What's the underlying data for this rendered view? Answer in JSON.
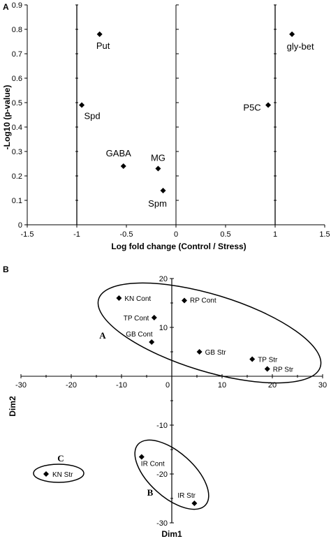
{
  "chart_data": [
    {
      "panel": "A",
      "type": "scatter",
      "xlabel": "Log fold change (Control / Stress)",
      "ylabel": "-Log10 (p-value)",
      "xlim": [
        -1.5,
        1.5
      ],
      "ylim": [
        0,
        0.9
      ],
      "x_ticks": [
        "-1.5",
        "-1",
        "-0.5",
        "0",
        "0.5",
        "1",
        "1.5"
      ],
      "y_ticks": [
        "0",
        "0.1",
        "0.2",
        "0.3",
        "0.4",
        "0.5",
        "0.6",
        "0.7",
        "0.8",
        "0.9"
      ],
      "threshold_lines_x": [
        -1,
        1
      ],
      "points": [
        {
          "label": "Put",
          "x": -0.77,
          "y": 0.78
        },
        {
          "label": "gly-bet",
          "x": 1.17,
          "y": 0.78
        },
        {
          "label": "Spd",
          "x": -0.95,
          "y": 0.49
        },
        {
          "label": "P5C",
          "x": 0.93,
          "y": 0.49
        },
        {
          "label": "GABA",
          "x": -0.53,
          "y": 0.24
        },
        {
          "label": "MG",
          "x": -0.18,
          "y": 0.23
        },
        {
          "label": "Spm",
          "x": -0.13,
          "y": 0.14
        }
      ]
    },
    {
      "panel": "B",
      "type": "scatter",
      "xlabel": "Dim1",
      "ylabel": "Dim2",
      "xlim": [
        -30,
        30
      ],
      "ylim": [
        -30,
        20
      ],
      "x_ticks": [
        "-30",
        "-20",
        "-10",
        "0",
        "10",
        "20",
        "30"
      ],
      "y_ticks": [
        "20",
        "10",
        "0",
        "-10",
        "-20",
        "-30"
      ],
      "points": [
        {
          "label": "KN Cont",
          "x": -10.5,
          "y": 16
        },
        {
          "label": "RP Cont",
          "x": 2.5,
          "y": 15.5
        },
        {
          "label": "TP Cont",
          "x": -3.5,
          "y": 12
        },
        {
          "label": "GB Cont",
          "x": -4,
          "y": 7
        },
        {
          "label": "GB Str",
          "x": 5.5,
          "y": 5
        },
        {
          "label": "TP Str",
          "x": 16,
          "y": 3.5
        },
        {
          "label": "RP Str",
          "x": 19,
          "y": 1.5
        },
        {
          "label": "IR Cont",
          "x": -6,
          "y": -16.5
        },
        {
          "label": "IR Str",
          "x": 4.5,
          "y": -26
        },
        {
          "label": "KN Str",
          "x": -25,
          "y": -20
        }
      ],
      "groups": [
        {
          "label": "A"
        },
        {
          "label": "B"
        },
        {
          "label": "C"
        }
      ]
    }
  ]
}
